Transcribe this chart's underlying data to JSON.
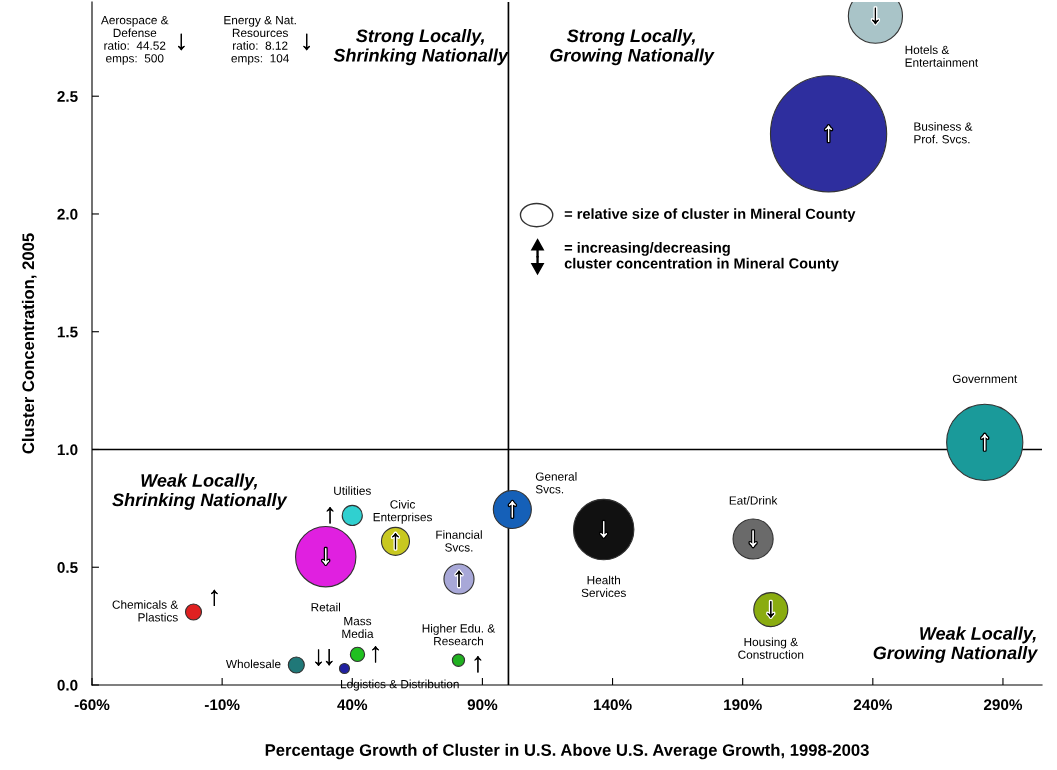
{
  "chart_data": {
    "type": "bubble",
    "xlabel": "Percentage Growth of Cluster in U.S. Above U.S. Average Growth, 1998-2003",
    "ylabel": "Cluster Concentration, 2005",
    "xlim": [
      -60,
      305
    ],
    "ylim": [
      0,
      2.9
    ],
    "xticks": [
      {
        "value": -60,
        "label": "-60%"
      },
      {
        "value": -10,
        "label": "-10%"
      },
      {
        "value": 40,
        "label": "40%"
      },
      {
        "value": 90,
        "label": "90%"
      },
      {
        "value": 140,
        "label": "140%"
      },
      {
        "value": 190,
        "label": "190%"
      },
      {
        "value": 240,
        "label": "240%"
      },
      {
        "value": 290,
        "label": "290%"
      }
    ],
    "yticks": [
      {
        "value": 0,
        "label": "0.0"
      },
      {
        "value": 0.5,
        "label": "0.5"
      },
      {
        "value": 1,
        "label": "1.0"
      },
      {
        "value": 1.5,
        "label": "1.5"
      },
      {
        "value": 2,
        "label": "2.0"
      },
      {
        "value": 2.5,
        "label": "2.5"
      }
    ],
    "grid": false,
    "series": [
      {
        "name": "Hotels &\nEntertainment",
        "color": "#a9c4c8",
        "x": [
          241
        ],
        "values": [
          2.84
        ],
        "sizes": [
          0.217
        ]
      },
      {
        "name": "Business &\nProf. Svcs.",
        "color": "#2e2e9e",
        "x": [
          223
        ],
        "values": [
          2.34
        ],
        "sizes": [
          1
        ]
      },
      {
        "name": "Government",
        "color": "#1a9a9a",
        "x": [
          283
        ],
        "values": [
          1.03
        ],
        "sizes": [
          0.43
        ]
      },
      {
        "name": "General\nSvcs.",
        "color": "#1560b8",
        "x": [
          101.5
        ],
        "values": [
          0.745
        ],
        "sizes": [
          0.107
        ]
      },
      {
        "name": "Health\nServices",
        "color": "#111111",
        "x": [
          136.6
        ],
        "values": [
          0.66
        ],
        "sizes": [
          0.27
        ]
      },
      {
        "name": "Eat/Drink",
        "color": "#6a6a6a",
        "x": [
          194
        ],
        "values": [
          0.62
        ],
        "sizes": [
          0.119
        ]
      },
      {
        "name": "Housing &\nConstruction",
        "color": "#8aac10",
        "x": [
          200.8
        ],
        "values": [
          0.32
        ],
        "sizes": [
          0.086
        ]
      },
      {
        "name": "Retail",
        "color": "#e020e0",
        "x": [
          29.8
        ],
        "values": [
          0.545
        ],
        "sizes": [
          0.27
        ]
      },
      {
        "name": "Utilities",
        "color": "#30d0d0",
        "x": [
          40
        ],
        "values": [
          0.72
        ],
        "sizes": [
          0.03
        ]
      },
      {
        "name": "Civic\nEnterprises",
        "color": "#c8c820",
        "x": [
          56.6
        ],
        "values": [
          0.61
        ],
        "sizes": [
          0.058
        ]
      },
      {
        "name": "Financial\nSvcs.",
        "color": "#a8a8d8",
        "x": [
          81
        ],
        "values": [
          0.45
        ],
        "sizes": [
          0.067
        ]
      },
      {
        "name": "Chemicals &\nPlastics",
        "color": "#e02020",
        "x": [
          -21
        ],
        "values": [
          0.31
        ],
        "sizes": [
          0.019
        ]
      },
      {
        "name": "Wholesale",
        "color": "#207878",
        "x": [
          18.5
        ],
        "values": [
          0.085
        ],
        "sizes": [
          0.019
        ]
      },
      {
        "name": "Mass\nMedia",
        "color": "#20c020",
        "x": [
          42
        ],
        "values": [
          0.13
        ],
        "sizes": [
          0.015
        ]
      },
      {
        "name": "Logistics & Distribution",
        "color": "#2020a0",
        "x": [
          37
        ],
        "values": [
          0.07
        ],
        "sizes": [
          0.0074
        ]
      },
      {
        "name": "Higher Edu. &\nResearch",
        "color": "#20b020",
        "x": [
          80.8
        ],
        "values": [
          0.105
        ],
        "sizes": [
          0.011
        ]
      }
    ],
    "ref_lines": [
      {
        "axis": "x",
        "value": 100,
        "color": "#000000"
      },
      {
        "axis": "y",
        "value": 1,
        "color": "#000000"
      }
    ],
    "annotations": [
      "Strong Locally,\nShrinking Nationally",
      "Strong Locally,\nGrowing Nationally",
      "Weak Locally,\nShrinking Nationally",
      "Weak Locally,\nGrowing Nationally",
      "= relative size of cluster in Mineral County",
      "= increasing/decreasing\ncluster concentration in Mineral County",
      "Aerospace &\nDefense\nratio:  44.52\nemps:  500",
      "Energy & Nat.\nResources\nratio:  8.12\nemps:  104",
      "↓",
      "↓",
      {
        "text": "↓",
        "x": 241,
        "y": 2.84
      },
      {
        "text": "↑",
        "x": 223,
        "y": 2.34
      },
      {
        "text": "↑",
        "x": 283,
        "y": 1.03
      },
      {
        "text": "↑",
        "x": 101.5,
        "y": 0.745
      },
      {
        "text": "↓",
        "x": 136.6,
        "y": 0.66
      },
      {
        "text": "↓",
        "x": 194,
        "y": 0.62
      },
      {
        "text": "↓",
        "x": 200.8,
        "y": 0.32
      },
      {
        "text": "↓",
        "x": 29.8,
        "y": 0.545
      },
      {
        "text": "↑",
        "x": 40,
        "y": 0.72
      },
      {
        "text": "↑",
        "x": 56.6,
        "y": 0.61
      },
      {
        "text": "↑",
        "x": 81,
        "y": 0.45
      },
      {
        "text": "↑",
        "x": -21,
        "y": 0.31
      },
      {
        "text": "↓",
        "x": 18.5,
        "y": 0.085
      },
      {
        "text": "↑",
        "x": 42,
        "y": 0.13
      },
      {
        "text": "↓",
        "x": 37,
        "y": 0.07
      },
      {
        "text": "↑",
        "x": 80.8,
        "y": 0.105
      }
    ]
  }
}
